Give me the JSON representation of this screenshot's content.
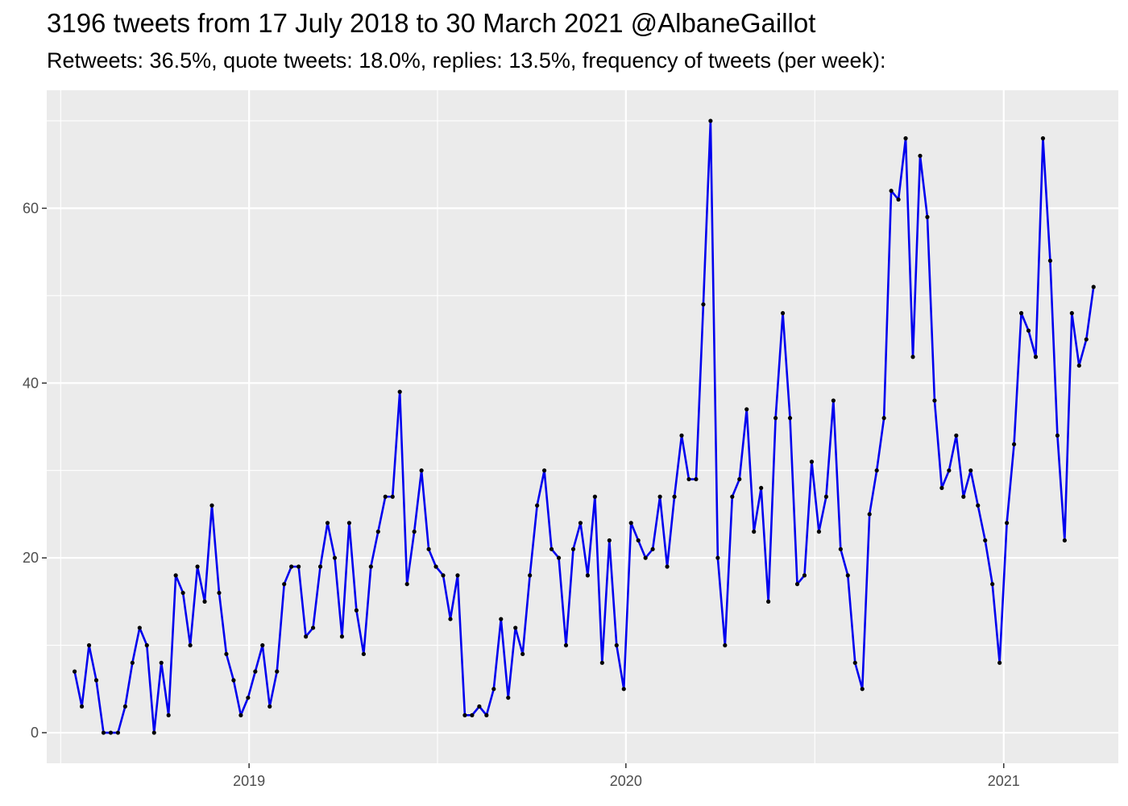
{
  "chart_data": {
    "type": "line",
    "title": "3196 tweets from 17 July 2018 to 30 March 2021 @AlbaneGaillot",
    "subtitle": "Retweets: 36.5%, quote tweets: 18.0%, replies: 13.5%, frequency of tweets (per week):",
    "xlabel": "",
    "ylabel": "",
    "x_tick_labels": [
      "2019",
      "2020",
      "2021"
    ],
    "x_ticks": [
      "2019-01-01",
      "2020-01-01",
      "2021-01-01"
    ],
    "y_ticks": [
      0,
      20,
      40,
      60
    ],
    "ylim": [
      -3.5,
      73.5
    ],
    "xlim": [
      "2018-06-19",
      "2021-04-22"
    ],
    "grid": true,
    "legend": "none",
    "colors": {
      "line": "#0000ee",
      "points": "#000000",
      "panel": "#ebebeb",
      "grid": "#ffffff"
    },
    "series": [
      {
        "x": [
          "2018-07-16",
          "2018-07-23",
          "2018-07-30",
          "2018-08-06",
          "2018-08-13",
          "2018-08-20",
          "2018-08-27",
          "2018-09-03",
          "2018-09-10",
          "2018-09-17",
          "2018-09-24",
          "2018-10-01",
          "2018-10-08",
          "2018-10-15",
          "2018-10-22",
          "2018-10-29",
          "2018-11-05",
          "2018-11-12",
          "2018-11-19",
          "2018-11-26",
          "2018-12-03",
          "2018-12-10",
          "2018-12-17",
          "2018-12-24",
          "2018-12-31",
          "2019-01-07",
          "2019-01-14",
          "2019-01-21",
          "2019-01-28",
          "2019-02-04",
          "2019-02-11",
          "2019-02-18",
          "2019-02-25",
          "2019-03-04",
          "2019-03-11",
          "2019-03-18",
          "2019-03-25",
          "2019-04-01",
          "2019-04-08",
          "2019-04-15",
          "2019-04-22",
          "2019-04-29",
          "2019-05-06",
          "2019-05-13",
          "2019-05-20",
          "2019-05-27",
          "2019-06-03",
          "2019-06-10",
          "2019-06-17",
          "2019-06-24",
          "2019-07-01",
          "2019-07-08",
          "2019-07-15",
          "2019-07-22",
          "2019-07-29",
          "2019-08-05",
          "2019-08-12",
          "2019-08-19",
          "2019-08-26",
          "2019-09-02",
          "2019-09-09",
          "2019-09-16",
          "2019-09-23",
          "2019-09-30",
          "2019-10-07",
          "2019-10-14",
          "2019-10-21",
          "2019-10-28",
          "2019-11-04",
          "2019-11-11",
          "2019-11-18",
          "2019-11-25",
          "2019-12-02",
          "2019-12-09",
          "2019-12-16",
          "2019-12-23",
          "2019-12-30",
          "2020-01-06",
          "2020-01-13",
          "2020-01-20",
          "2020-01-27",
          "2020-02-03",
          "2020-02-10",
          "2020-02-17",
          "2020-02-24",
          "2020-03-02",
          "2020-03-09",
          "2020-03-16",
          "2020-03-23",
          "2020-03-30",
          "2020-04-06",
          "2020-04-13",
          "2020-04-20",
          "2020-04-27",
          "2020-05-04",
          "2020-05-11",
          "2020-05-18",
          "2020-05-25",
          "2020-06-01",
          "2020-06-08",
          "2020-06-15",
          "2020-06-22",
          "2020-06-29",
          "2020-07-06",
          "2020-07-13",
          "2020-07-20",
          "2020-07-27",
          "2020-08-03",
          "2020-08-10",
          "2020-08-17",
          "2020-08-24",
          "2020-08-31",
          "2020-09-07",
          "2020-09-14",
          "2020-09-21",
          "2020-09-28",
          "2020-10-05",
          "2020-10-12",
          "2020-10-19",
          "2020-10-26",
          "2020-11-02",
          "2020-11-09",
          "2020-11-16",
          "2020-11-23",
          "2020-11-30",
          "2020-12-07",
          "2020-12-14",
          "2020-12-21",
          "2020-12-28",
          "2021-01-04",
          "2021-01-11",
          "2021-01-18",
          "2021-01-25",
          "2021-02-01",
          "2021-02-08",
          "2021-02-15",
          "2021-02-22",
          "2021-03-01",
          "2021-03-08",
          "2021-03-15",
          "2021-03-22",
          "2021-03-29"
        ],
        "values": [
          7,
          3,
          10,
          6,
          0,
          0,
          0,
          3,
          8,
          12,
          10,
          0,
          8,
          2,
          18,
          16,
          10,
          19,
          15,
          26,
          16,
          9,
          6,
          2,
          4,
          7,
          10,
          3,
          7,
          17,
          19,
          19,
          11,
          12,
          19,
          24,
          20,
          11,
          24,
          14,
          9,
          19,
          23,
          27,
          27,
          39,
          17,
          23,
          30,
          21,
          19,
          18,
          13,
          18,
          2,
          2,
          3,
          2,
          5,
          13,
          4,
          12,
          9,
          18,
          26,
          30,
          21,
          20,
          10,
          21,
          24,
          18,
          27,
          8,
          22,
          10,
          5,
          24,
          22,
          20,
          21,
          27,
          19,
          27,
          34,
          29,
          29,
          49,
          70,
          20,
          10,
          27,
          29,
          37,
          23,
          28,
          15,
          36,
          48,
          36,
          17,
          18,
          31,
          23,
          27,
          38,
          21,
          18,
          8,
          5,
          25,
          30,
          36,
          62,
          61,
          68,
          43,
          66,
          59,
          38,
          28,
          30,
          34,
          27,
          30,
          26,
          22,
          17,
          8,
          24,
          33,
          48,
          46,
          43,
          68,
          54,
          34,
          22,
          48,
          42,
          45,
          51
        ]
      }
    ]
  }
}
